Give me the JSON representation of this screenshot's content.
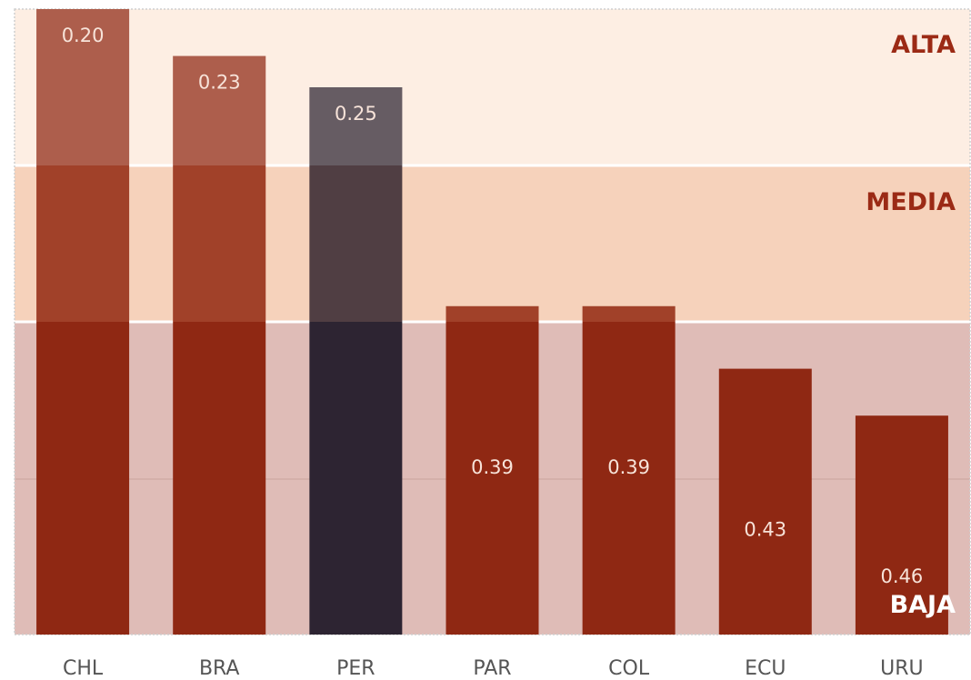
{
  "chart_data": {
    "type": "bar",
    "categories": [
      "CHL",
      "BRA",
      "PER",
      "PAR",
      "COL",
      "ECU",
      "URU"
    ],
    "values": [
      0.2,
      0.23,
      0.25,
      0.39,
      0.39,
      0.43,
      0.46
    ],
    "value_labels": [
      "0.20",
      "0.23",
      "0.25",
      "0.39",
      "0.39",
      "0.43",
      "0.46"
    ],
    "highlight_category": "PER",
    "y_axis": "inverted",
    "ylim": [
      0.2,
      0.6
    ],
    "bands": [
      {
        "label": "ALTA",
        "from": 0.2,
        "to": 0.3,
        "color": "#fdeee3",
        "label_color": "#9b2a15"
      },
      {
        "label": "MEDIA",
        "from": 0.3,
        "to": 0.4,
        "color": "#f6d2bb",
        "label_color": "#9b2a15"
      },
      {
        "label": "BAJA",
        "from": 0.4,
        "to": 0.6,
        "color": "#dfbcb7",
        "label_color": "#ffffff"
      }
    ],
    "colors": {
      "bar": "#8f2813",
      "bar_highlight": "#2d2432",
      "value_label": "#f7e3d9",
      "tick_label": "#555555"
    },
    "grid": false,
    "legend": "none"
  }
}
